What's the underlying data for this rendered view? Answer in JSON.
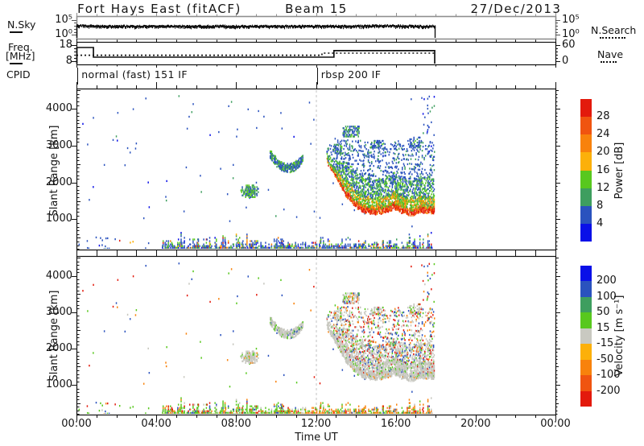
{
  "title": {
    "station": "Fort Hays East (fitACF)",
    "beam": "Beam 15",
    "date": "27/Dec/2013"
  },
  "side_labels": {
    "nsky": "N.Sky",
    "freq_line1": "Freq.",
    "freq_line2": "[MHz]",
    "cpid": "CPID",
    "nsearch": "N.Search",
    "nave": "Nave"
  },
  "axis": {
    "time_label": "Time UT",
    "range_label": "Slant Range [km]",
    "time_ticks": [
      "00:00",
      "04:00",
      "08:00",
      "12:00",
      "16:00",
      "20:00",
      "00:00"
    ],
    "range_ticks": [
      "1000",
      "2000",
      "3000",
      "4000"
    ]
  },
  "panel_ticks": {
    "nsky_left": [
      "10⁵",
      "10⁰"
    ],
    "nsky_right": [
      "10⁵",
      "10⁰"
    ],
    "freq_left": [
      "18",
      "8"
    ],
    "freq_right": [
      "60",
      "0"
    ]
  },
  "cpid_segments": [
    {
      "t": 0.05,
      "label": "normal (fast) 151 IF"
    },
    {
      "t": 12.05,
      "label": "rbsp 200 IF"
    }
  ],
  "chart_data": {
    "type": "heatmap",
    "x_range_hours": [
      0,
      24
    ],
    "range_km": [
      180,
      4550
    ],
    "data_end_hour": 17.95,
    "dashed_time": 12,
    "seed": 20131227,
    "nsky_series": {
      "t": [
        0,
        17.95
      ],
      "log_start": 3.05,
      "log_flat": 2.88,
      "noise_log": 0.22,
      "bump": {
        "t_center": 15.3,
        "t_sigma": 0.9,
        "amp": 0.18
      }
    },
    "freq_series": {
      "ylim": [
        8,
        18
      ],
      "points": [
        [
          0,
          16.5
        ],
        [
          0.85,
          10.5
        ],
        [
          12.9,
          14.6
        ],
        [
          17.95,
          8.3
        ]
      ]
    },
    "nave_series": {
      "ylim": [
        0,
        60
      ],
      "points": [
        [
          0,
          22
        ],
        [
          12.3,
          30
        ],
        [
          17.95,
          30
        ]
      ]
    },
    "colorbars": {
      "power": {
        "title": "Power [dB]",
        "labels": [
          "28",
          "24",
          "20",
          "16",
          "12",
          "8",
          "4"
        ],
        "colors": [
          "#e31a0c",
          "#f05410",
          "#f8820c",
          "#fcb00a",
          "#58c81e",
          "#3e9e5f",
          "#2a52be",
          "#0a10e8"
        ]
      },
      "velocity": {
        "title": "Velocity [m s⁻¹]",
        "labels": [
          "200",
          "100",
          "50",
          "15",
          "-15",
          "-50",
          "-100",
          "-200"
        ],
        "colors": [
          "#0a10e8",
          "#2a52be",
          "#3e9e5f",
          "#58c81e",
          "#c9c9c1",
          "#fcb00a",
          "#f8820c",
          "#f05410",
          "#e31a0c"
        ]
      }
    },
    "palette_hex": {
      "red": "#e31a0c",
      "redorange": "#f05410",
      "orange": "#f8820c",
      "yelloworange": "#fcb00a",
      "green": "#58c81e",
      "teal": "#3e9e5f",
      "blue": "#2a52be",
      "brightblue": "#0a10e8",
      "gray": "#c6c6be"
    },
    "features": {
      "sparse_dots": {
        "t": [
          0.3,
          17.9
        ],
        "r": [
          750,
          4350
        ],
        "count": 80,
        "power": [
          [
            "blue",
            0.72
          ],
          [
            "brightblue",
            0.14
          ],
          [
            "teal",
            0.14
          ]
        ],
        "velocity": [
          [
            "blue",
            0.25
          ],
          [
            "red",
            0.22
          ],
          [
            "orange",
            0.2
          ],
          [
            "green",
            0.23
          ],
          [
            "gray",
            0.1
          ]
        ]
      },
      "edge_column": {
        "t": [
          17.35,
          17.95
        ],
        "r": [
          2600,
          4480
        ],
        "count": 30
      },
      "blob": {
        "t": [
          8.2,
          9.15
        ],
        "r_center": 1760,
        "r_half": 200,
        "power": [
          [
            "green",
            0.42
          ],
          [
            "teal",
            0.34
          ],
          [
            "blue",
            0.24
          ]
        ],
        "velocity": [
          [
            "gray",
            0.8
          ],
          [
            "green",
            0.12
          ],
          [
            "orange",
            0.08
          ]
        ]
      },
      "arc": {
        "t": [
          9.7,
          11.35
        ],
        "r_min": 2400,
        "curve_amp": 350,
        "t_center": 10.6,
        "t_scale": 0.85,
        "half_width": 100,
        "power": [
          [
            "blue",
            0.52
          ],
          [
            "teal",
            0.27
          ],
          [
            "green",
            0.21
          ]
        ],
        "velocity": [
          [
            "gray",
            0.84
          ],
          [
            "green",
            0.11
          ],
          [
            "blue",
            0.05
          ]
        ]
      },
      "main": {
        "t": [
          12.55,
          17.95
        ],
        "r_cap": 3150,
        "bottom_edge": [
          [
            12.55,
            2550
          ],
          [
            13.0,
            2150
          ],
          [
            13.5,
            1650
          ],
          [
            14.0,
            1330
          ],
          [
            14.5,
            1190
          ],
          [
            15.0,
            1140
          ],
          [
            15.5,
            1190
          ],
          [
            15.9,
            1310
          ],
          [
            16.3,
            1190
          ],
          [
            16.8,
            1120
          ],
          [
            17.3,
            1210
          ],
          [
            17.95,
            1160
          ]
        ],
        "layers": [
          {
            "dr": [
              0,
              140
            ],
            "density": 0.92,
            "power": [
              [
                "red",
                0.5
              ],
              [
                "redorange",
                0.3
              ],
              [
                "orange",
                0.2
              ]
            ],
            "velocity": [
              [
                "gray",
                0.9
              ],
              [
                "orange",
                0.06
              ],
              [
                "green",
                0.04
              ]
            ]
          },
          {
            "dr": [
              140,
              430
            ],
            "density": 0.8,
            "power": [
              [
                "orange",
                0.22
              ],
              [
                "yelloworange",
                0.22
              ],
              [
                "green",
                0.38
              ],
              [
                "teal",
                0.18
              ]
            ],
            "velocity": [
              [
                "gray",
                0.86
              ],
              [
                "green",
                0.08
              ],
              [
                "red",
                0.03
              ],
              [
                "blue",
                0.03
              ]
            ]
          },
          {
            "dr": [
              430,
              950
            ],
            "density": 0.55,
            "power": [
              [
                "green",
                0.3
              ],
              [
                "teal",
                0.3
              ],
              [
                "blue",
                0.4
              ]
            ],
            "velocity": [
              [
                "gray",
                0.62
              ],
              [
                "green",
                0.12
              ],
              [
                "red",
                0.1
              ],
              [
                "blue",
                0.09
              ],
              [
                "orange",
                0.07
              ]
            ]
          },
          {
            "dr": [
              950,
              1900
            ],
            "density": 0.32,
            "power": [
              [
                "blue",
                0.78
              ],
              [
                "teal",
                0.22
              ]
            ],
            "velocity": [
              [
                "gray",
                0.45
              ],
              [
                "green",
                0.14
              ],
              [
                "red",
                0.14
              ],
              [
                "blue",
                0.15
              ],
              [
                "orange",
                0.12
              ]
            ]
          }
        ]
      },
      "patches": [
        {
          "t": [
            13.35,
            14.15
          ],
          "r": [
            3250,
            3560
          ],
          "density": 0.5
        },
        {
          "t": [
            12.85,
            13.3
          ],
          "r": [
            2800,
            3050
          ],
          "density": 0.45
        },
        {
          "t": [
            14.75,
            15.35
          ],
          "r": [
            2950,
            3150
          ],
          "density": 0.35
        },
        {
          "t": [
            16.6,
            17.3
          ],
          "r": [
            2950,
            3250
          ],
          "density": 0.3
        }
      ],
      "patch_palette": {
        "power": [
          [
            "blue",
            0.6
          ],
          [
            "teal",
            0.25
          ],
          [
            "green",
            0.15
          ]
        ],
        "velocity": [
          [
            "gray",
            0.55
          ],
          [
            "green",
            0.15
          ],
          [
            "red",
            0.1
          ],
          [
            "blue",
            0.1
          ],
          [
            "orange",
            0.1
          ]
        ]
      },
      "clutter": {
        "t": [
          4.3,
          17.85
        ],
        "r_base": 185,
        "h_typ": 260,
        "h_max": 660,
        "sparse_t": [
          0.1,
          4.3
        ],
        "sparse_count": 22,
        "t_split": 11.3,
        "power": [
          [
            "blue",
            0.48
          ],
          [
            "brightblue",
            0.1
          ],
          [
            "green",
            0.17
          ],
          [
            "teal",
            0.08
          ],
          [
            "yelloworange",
            0.07
          ],
          [
            "orange",
            0.06
          ],
          [
            "red",
            0.04
          ]
        ],
        "velocity_early": [
          [
            "green",
            0.55
          ],
          [
            "orange",
            0.14
          ],
          [
            "gray",
            0.12
          ],
          [
            "blue",
            0.09
          ],
          [
            "red",
            0.1
          ]
        ],
        "velocity_late": [
          [
            "orange",
            0.48
          ],
          [
            "green",
            0.22
          ],
          [
            "gray",
            0.12
          ],
          [
            "blue",
            0.08
          ],
          [
            "red",
            0.1
          ]
        ]
      }
    }
  }
}
